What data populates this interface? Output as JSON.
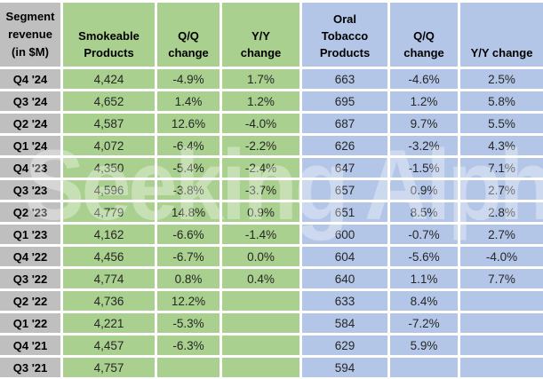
{
  "chart_data": {
    "type": "table",
    "title": "Segment revenue (in $M)",
    "columns": [
      "Quarter",
      "Smokeable Products",
      "Q/Q change",
      "Y/Y change",
      "Oral Tobacco Products",
      "Q/Q change",
      "Y/Y change"
    ],
    "column_groups": [
      {
        "name": "Smokeable Products",
        "color": "#a9d08e",
        "columns": [
          "Smokeable Products",
          "Q/Q change",
          "Y/Y change"
        ]
      },
      {
        "name": "Oral Tobacco Products",
        "color": "#b4c6e7",
        "columns": [
          "Oral Tobacco Products",
          "Q/Q change",
          "Y/Y change"
        ]
      }
    ],
    "rows": [
      [
        "Q4 '24",
        "4,424",
        "-4.9%",
        "1.7%",
        "663",
        "-4.6%",
        "2.5%"
      ],
      [
        "Q3 '24",
        "4,652",
        "1.4%",
        "1.2%",
        "695",
        "1.2%",
        "5.8%"
      ],
      [
        "Q2 '24",
        "4,587",
        "12.6%",
        "-4.0%",
        "687",
        "9.7%",
        "5.5%"
      ],
      [
        "Q1 '24",
        "4,072",
        "-6.4%",
        "-2.2%",
        "626",
        "-3.2%",
        "4.3%"
      ],
      [
        "Q4 '23",
        "4,350",
        "-5.4%",
        "-2.4%",
        "647",
        "-1.5%",
        "7.1%"
      ],
      [
        "Q3 '23",
        "4,596",
        "-3.8%",
        "-3.7%",
        "657",
        "0.9%",
        "2.7%"
      ],
      [
        "Q2 '23",
        "4,779",
        "14.8%",
        "0.9%",
        "651",
        "8.5%",
        "2.8%"
      ],
      [
        "Q1 '23",
        "4,162",
        "-6.6%",
        "-1.4%",
        "600",
        "-0.7%",
        "2.7%"
      ],
      [
        "Q4 '22",
        "4,456",
        "-6.7%",
        "0.0%",
        "604",
        "-5.6%",
        "-4.0%"
      ],
      [
        "Q3 '22",
        "4,774",
        "0.8%",
        "0.4%",
        "640",
        "1.1%",
        "7.7%"
      ],
      [
        "Q2 '22",
        "4,736",
        "12.2%",
        "",
        "633",
        "8.4%",
        ""
      ],
      [
        "Q1 '22",
        "4,221",
        "-5.3%",
        "",
        "584",
        "-7.2%",
        ""
      ],
      [
        "Q4 '21",
        "4,457",
        "-6.3%",
        "",
        "629",
        "5.9%",
        ""
      ],
      [
        "Q3 '21",
        "4,757",
        "",
        "",
        "594",
        "",
        ""
      ]
    ]
  },
  "header": {
    "corner_label": "Segment revenue (in $M)",
    "columns": [
      "Smokeable Products",
      "Q/Q change",
      "Y/Y change",
      "Oral Tobacco Products",
      "Q/Q change",
      "Y/Y change"
    ]
  },
  "watermark": {
    "text": "Seeking Alpha",
    "alpha_symbol": "α"
  },
  "colors": {
    "smokeable_fill": "#a9d08e",
    "oral_tobacco_fill": "#b4c6e7",
    "label_fill": "#bfbfbf",
    "gridline": "#ffffff",
    "header_text": "#000000",
    "data_text": "#262626",
    "watermark_text": "rgba(255,255,255,0.34)"
  }
}
